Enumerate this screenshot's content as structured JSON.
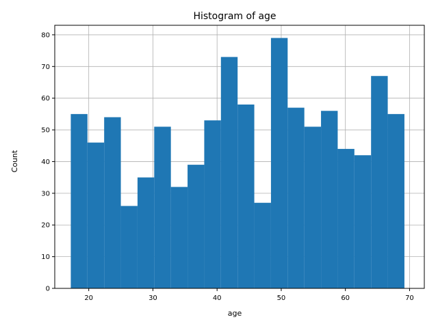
{
  "chart_data": {
    "type": "bar",
    "title": "Histogram of age",
    "xlabel": "age",
    "ylabel": "Count",
    "xlim": [
      14.7,
      72.3
    ],
    "ylim": [
      0,
      83
    ],
    "grid": true,
    "bar_color": "#1f77b4",
    "grid_color": "#b0b0b0",
    "bins": [
      {
        "x0": 17.2,
        "x1": 19.8,
        "count": 55
      },
      {
        "x0": 19.8,
        "x1": 22.4,
        "count": 46
      },
      {
        "x0": 22.4,
        "x1": 25.0,
        "count": 54
      },
      {
        "x0": 25.0,
        "x1": 27.6,
        "count": 26
      },
      {
        "x0": 27.6,
        "x1": 30.2,
        "count": 35
      },
      {
        "x0": 30.2,
        "x1": 32.8,
        "count": 51
      },
      {
        "x0": 32.8,
        "x1": 35.4,
        "count": 32
      },
      {
        "x0": 35.4,
        "x1": 38.0,
        "count": 39
      },
      {
        "x0": 38.0,
        "x1": 40.6,
        "count": 53
      },
      {
        "x0": 40.6,
        "x1": 43.2,
        "count": 73
      },
      {
        "x0": 43.2,
        "x1": 45.8,
        "count": 58
      },
      {
        "x0": 45.8,
        "x1": 48.4,
        "count": 27
      },
      {
        "x0": 48.4,
        "x1": 51.0,
        "count": 79
      },
      {
        "x0": 51.0,
        "x1": 53.6,
        "count": 57
      },
      {
        "x0": 53.6,
        "x1": 56.2,
        "count": 51
      },
      {
        "x0": 56.2,
        "x1": 58.8,
        "count": 56
      },
      {
        "x0": 58.8,
        "x1": 61.4,
        "count": 44
      },
      {
        "x0": 61.4,
        "x1": 64.0,
        "count": 42
      },
      {
        "x0": 64.0,
        "x1": 66.6,
        "count": 67
      },
      {
        "x0": 66.6,
        "x1": 69.2,
        "count": 55
      }
    ],
    "xticks": [
      20,
      30,
      40,
      50,
      60,
      70
    ],
    "yticks": [
      0,
      10,
      20,
      30,
      40,
      50,
      60,
      70,
      80
    ]
  }
}
